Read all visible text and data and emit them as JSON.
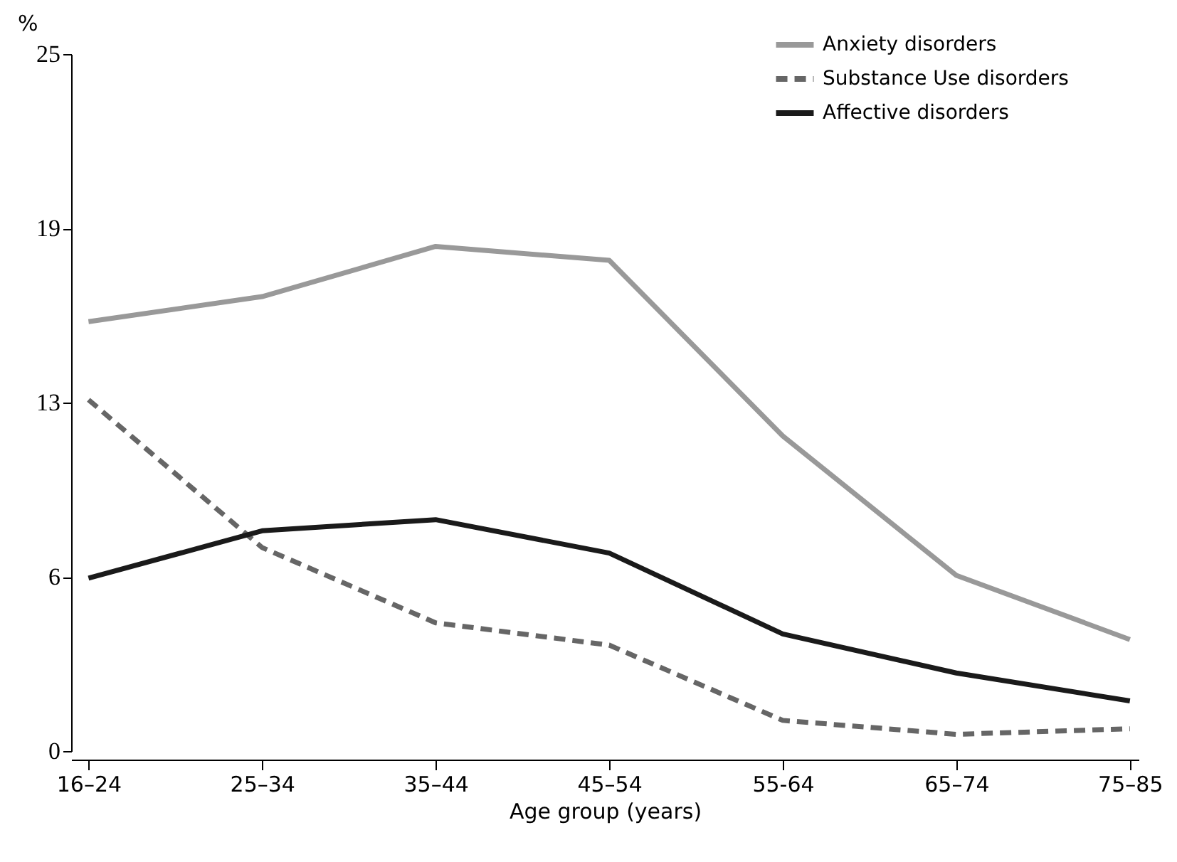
{
  "chart_data": {
    "type": "line",
    "xlabel": "Age group (years)",
    "ylabel": "%",
    "categories": [
      "16–24",
      "25–34",
      "35–44",
      "45–54",
      "55-64",
      "65–74",
      "75–85"
    ],
    "ylim": [
      0,
      25
    ],
    "yticks": [
      0,
      {
        "value": 6.25,
        "label": "6"
      },
      {
        "value": 12.5,
        "label": "13"
      },
      {
        "value": 18.75,
        "label": "19"
      },
      25
    ],
    "grid": false,
    "legend": "top right",
    "marker": "none",
    "series": [
      {
        "name": "Anxiety disorders",
        "color": "#999999",
        "line_style": "solid",
        "values": [
          15.4,
          16.3,
          18.1,
          17.6,
          11.3,
          6.3,
          4.0
        ]
      },
      {
        "name": "Substance Use disorders",
        "color": "#666666",
        "line_style": "dashed",
        "values": [
          12.6,
          7.3,
          4.6,
          3.8,
          1.1,
          0.6,
          0.8
        ]
      },
      {
        "name": "Affective disorders",
        "color": "#1a1a1a",
        "line_style": "solid",
        "values": [
          6.2,
          7.9,
          8.3,
          7.1,
          4.2,
          2.8,
          1.8
        ]
      }
    ]
  }
}
